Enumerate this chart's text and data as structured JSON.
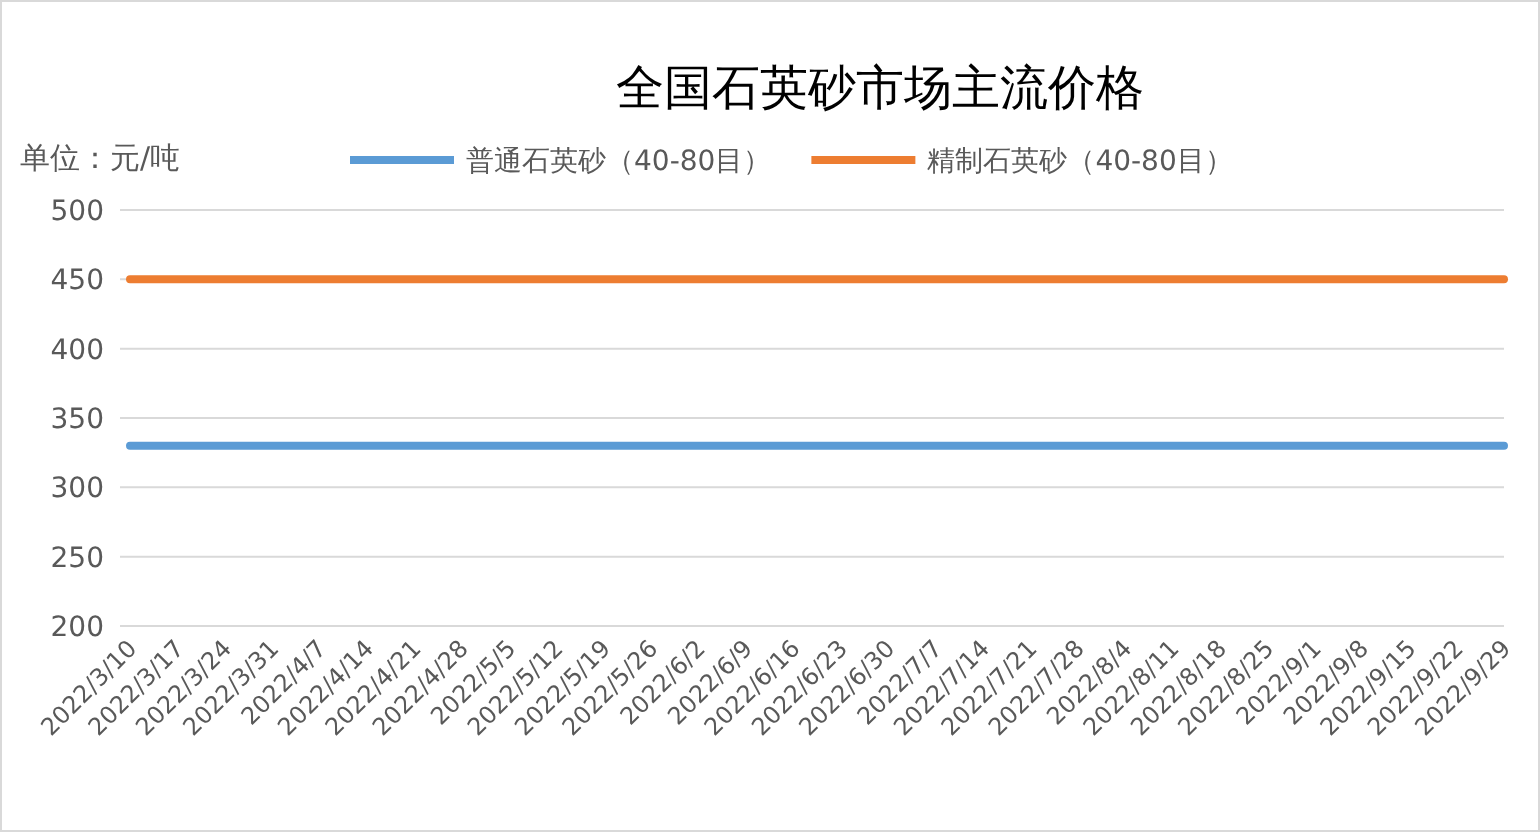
{
  "chart_data": {
    "type": "line",
    "title": "全国石英砂市场主流价格",
    "ylabel": "单位：元/吨",
    "categories": [
      "2022/3/10",
      "2022/3/17",
      "2022/3/24",
      "2022/3/31",
      "2022/4/7",
      "2022/4/14",
      "2022/4/21",
      "2022/4/28",
      "2022/5/5",
      "2022/5/12",
      "2022/5/19",
      "2022/5/26",
      "2022/6/2",
      "2022/6/9",
      "2022/6/16",
      "2022/6/23",
      "2022/6/30",
      "2022/7/7",
      "2022/7/14",
      "2022/7/21",
      "2022/7/28",
      "2022/8/4",
      "2022/8/11",
      "2022/8/18",
      "2022/8/25",
      "2022/9/1",
      "2022/9/8",
      "2022/9/15",
      "2022/9/22",
      "2022/9/29"
    ],
    "series": [
      {
        "name": "普通石英砂（40-80目）",
        "color": "#5b9bd5",
        "values": [
          330,
          330,
          330,
          330,
          330,
          330,
          330,
          330,
          330,
          330,
          330,
          330,
          330,
          330,
          330,
          330,
          330,
          330,
          330,
          330,
          330,
          330,
          330,
          330,
          330,
          330,
          330,
          330,
          330,
          330
        ]
      },
      {
        "name": "精制石英砂（40-80目）",
        "color": "#ed7d31",
        "values": [
          450,
          450,
          450,
          450,
          450,
          450,
          450,
          450,
          450,
          450,
          450,
          450,
          450,
          450,
          450,
          450,
          450,
          450,
          450,
          450,
          450,
          450,
          450,
          450,
          450,
          450,
          450,
          450,
          450,
          450
        ]
      }
    ],
    "ylim": [
      200,
      500
    ],
    "yticks": [
      200,
      250,
      300,
      350,
      400,
      450,
      500
    ],
    "grid": "y",
    "legend": "top"
  }
}
